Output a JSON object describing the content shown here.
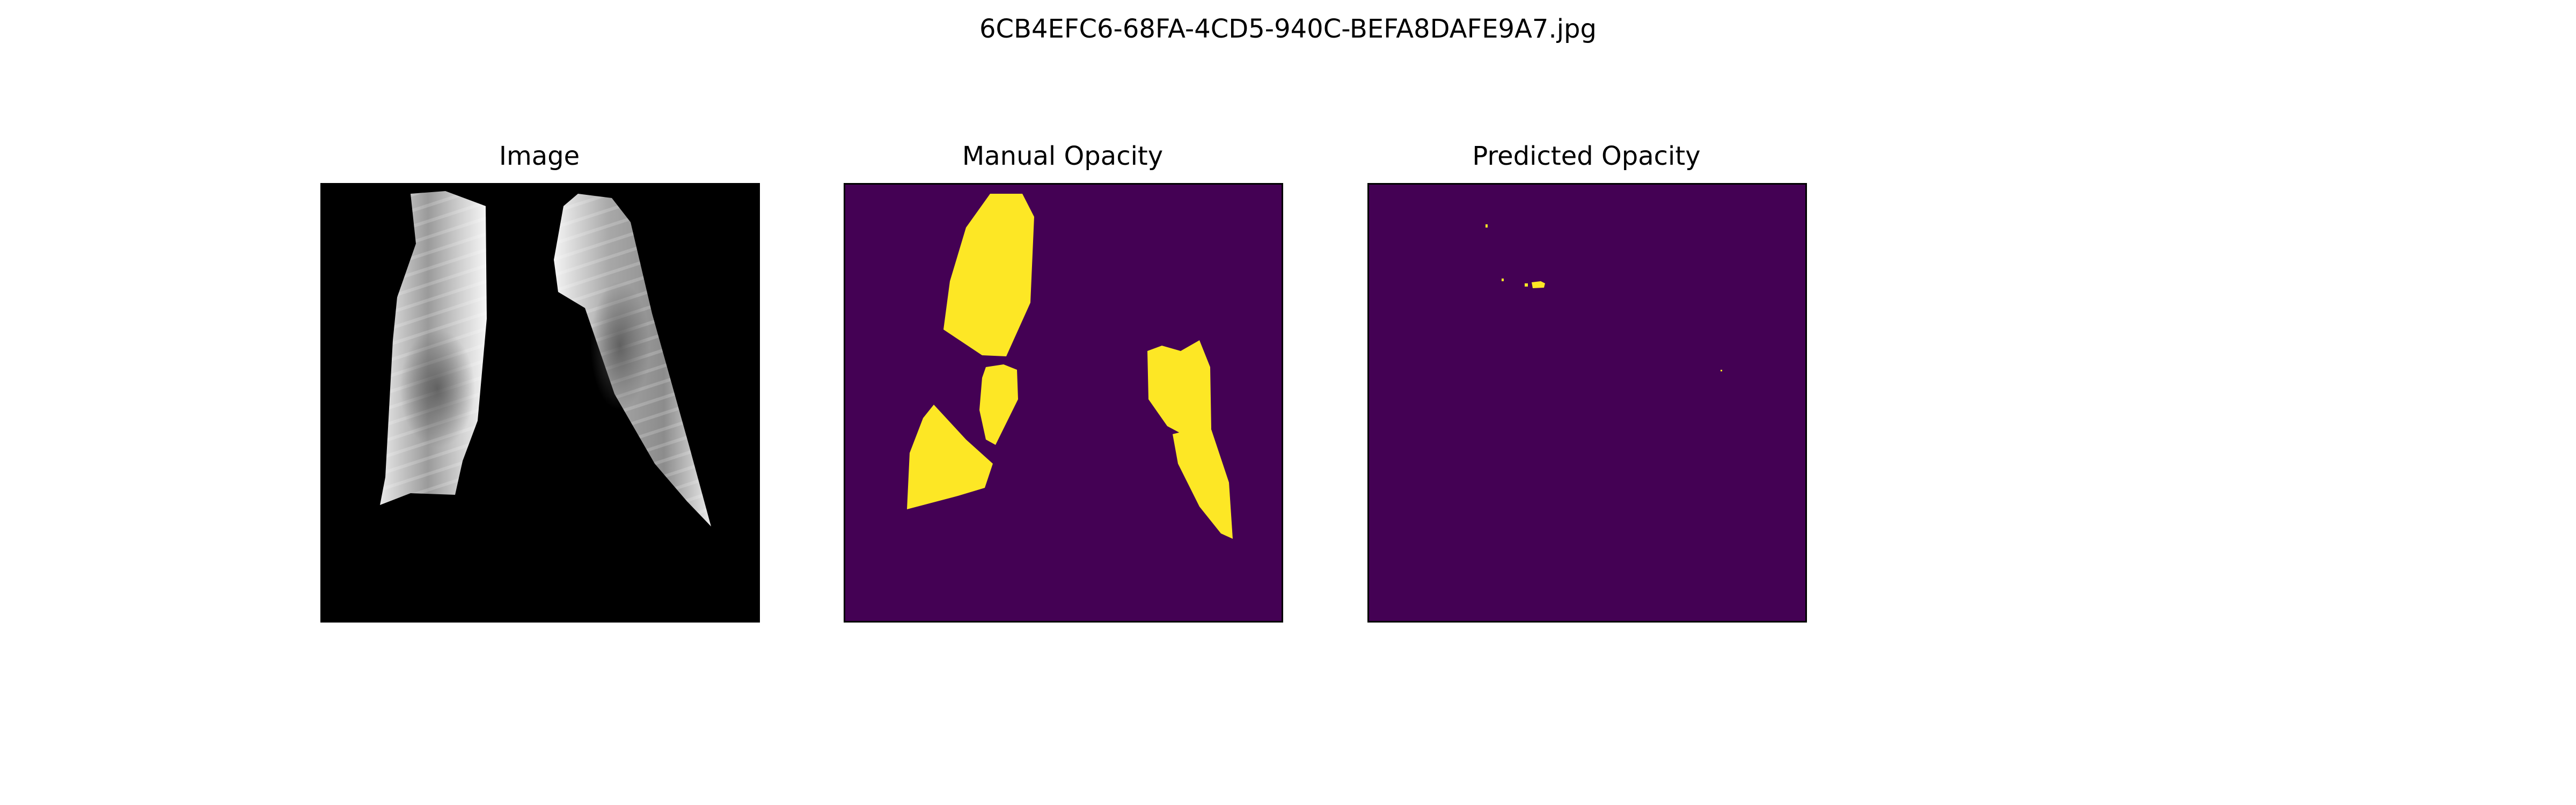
{
  "figure": {
    "title": "6CB4EFC6-68FA-4CD5-940C-BEFA8DAFE9A7.jpg"
  },
  "panels": [
    {
      "id": "image",
      "title": "Image",
      "colormap": "gray"
    },
    {
      "id": "manual",
      "title": "Manual Opacity",
      "colormap": "viridis"
    },
    {
      "id": "predicted",
      "title": "Predicted Opacity",
      "colormap": "viridis"
    }
  ],
  "colors": {
    "mask_background": "#440154",
    "mask_foreground": "#fde725",
    "image_background": "#000000",
    "lung_light": "#f2f2f2",
    "lung_dark": "#5a5a5a"
  }
}
